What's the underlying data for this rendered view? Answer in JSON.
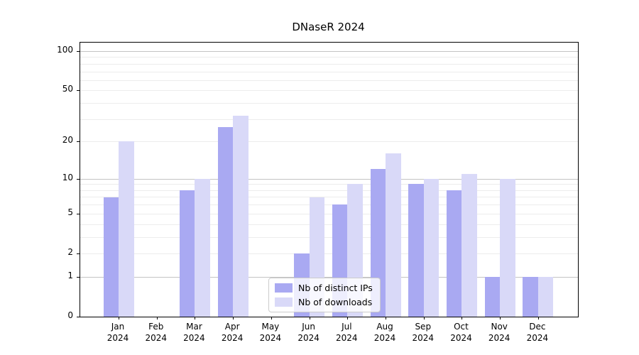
{
  "title": "DNaseR 2024",
  "chart_data": {
    "type": "bar",
    "title": "DNaseR 2024",
    "categories": [
      "Jan",
      "Feb",
      "Mar",
      "Apr",
      "May",
      "Jun",
      "Jul",
      "Aug",
      "Sep",
      "Oct",
      "Nov",
      "Dec"
    ],
    "category_year": "2024",
    "series": [
      {
        "name": "Nb of distinct IPs",
        "color": "#a9a9f2",
        "values": [
          7,
          0,
          8,
          26,
          0,
          2,
          6,
          12,
          9,
          8,
          1,
          1
        ]
      },
      {
        "name": "Nb of downloads",
        "color": "#d9d9f8",
        "values": [
          20,
          0,
          10,
          32,
          0,
          7,
          9,
          16,
          10,
          11,
          10,
          1
        ]
      }
    ],
    "xlabel": "",
    "ylabel": "",
    "y_axis": {
      "scale": "log1p",
      "tick_values": [
        0,
        1,
        2,
        5,
        10,
        20,
        50,
        100
      ],
      "major_gridlines": [
        1,
        10,
        100
      ],
      "minor_gridlines": [
        2,
        3,
        4,
        5,
        6,
        7,
        8,
        9,
        20,
        30,
        40,
        50,
        60,
        70,
        80,
        90
      ],
      "ylim": [
        0,
        130
      ]
    },
    "grid": true,
    "legend_position": "lower center",
    "colors": {
      "axis": "#000000",
      "major_grid": "#c3c3c3",
      "minor_grid": "#ececec",
      "background": "#ffffff"
    }
  }
}
